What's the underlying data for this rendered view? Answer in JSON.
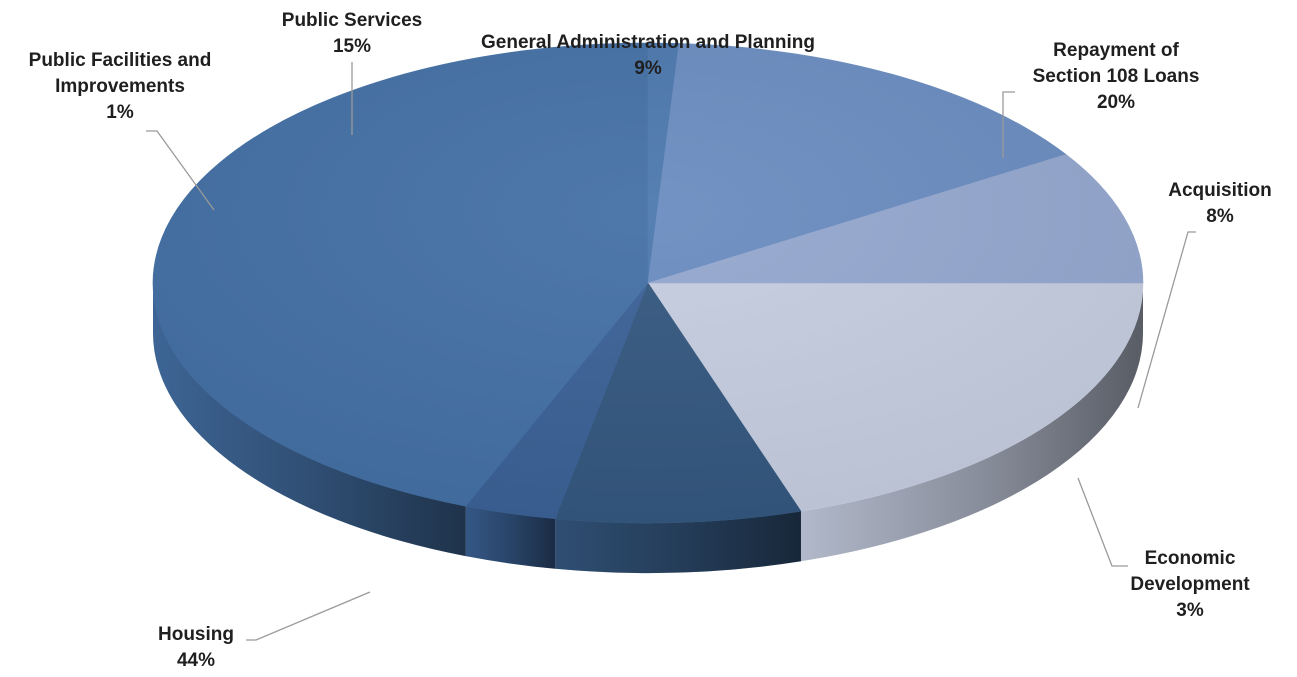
{
  "chart_data": {
    "type": "pie",
    "title": "",
    "slices": [
      {
        "category": "Repayment of Section 108 Loans",
        "lines": [
          "Repayment of",
          "Section 108 Loans"
        ],
        "value": 20,
        "label": "20%",
        "color": "#c5cde0"
      },
      {
        "category": "Acquisition",
        "lines": [
          "Acquisition"
        ],
        "value": 8,
        "label": "8%",
        "color": "#34577f"
      },
      {
        "category": "Economic Development",
        "lines": [
          "Economic",
          "Development"
        ],
        "value": 3,
        "label": "3%",
        "color": "#3a6195"
      },
      {
        "category": "Housing",
        "lines": [
          "Housing"
        ],
        "value": 44,
        "label": "44%",
        "color": "#4470a5"
      },
      {
        "category": "Public Facilities and Improvements",
        "lines": [
          "Public Facilities and",
          "Improvements"
        ],
        "value": 1,
        "label": "1%",
        "color": "#4c78ad"
      },
      {
        "category": "Public Services",
        "lines": [
          "Public Services"
        ],
        "value": 15,
        "label": "15%",
        "color": "#6a8cc0"
      },
      {
        "category": "General Administration and Planning",
        "lines": [
          "General Administration and Planning"
        ],
        "value": 9,
        "label": "9%",
        "color": "#94a7ce"
      }
    ],
    "legend": "none",
    "style": "3d-pie"
  }
}
